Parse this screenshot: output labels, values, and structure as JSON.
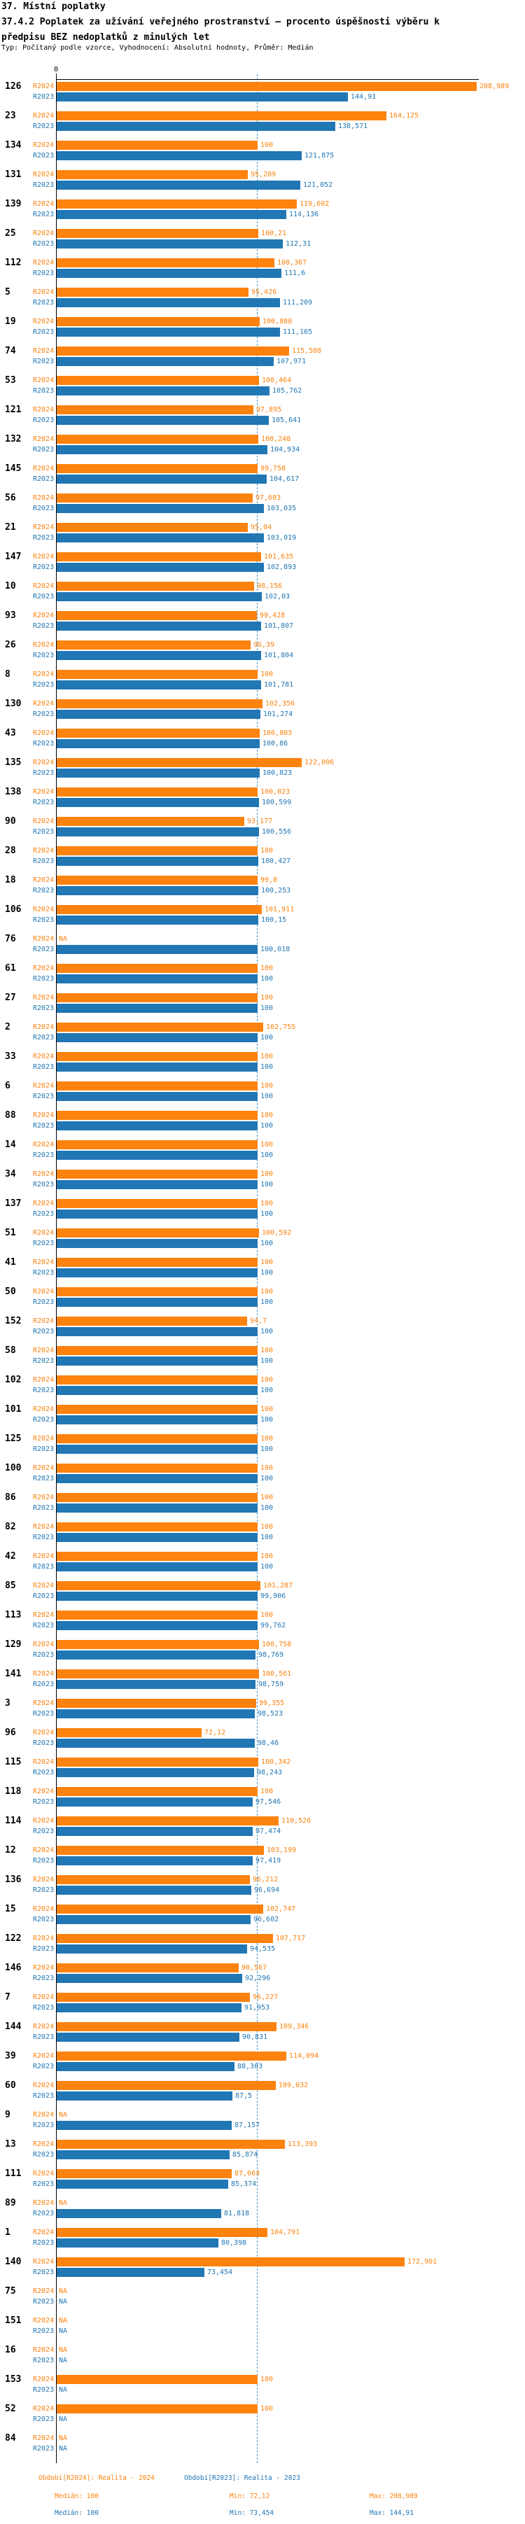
{
  "title": {
    "line1": "37. Místní poplatky",
    "line2": "37.4.2 Poplatek za užívání veřejného prostranství – procento úspěšnosti výběru k",
    "line3": "předpisu BEZ nedoplatků z minulých let",
    "subtitle": "Typ: Počítaný podle vzorce, Vyhodnocení: Absolutní hodnoty, Průměr: Medián"
  },
  "axis": {
    "zero_tick_label": "0"
  },
  "legend": {
    "r2024": {
      "period": "Období[R2024]: Realita - 2024",
      "median": "Medián: 100",
      "min": "Min: 72,12",
      "max": "Max: 208,989"
    },
    "r2023": {
      "period": "Období[R2023]: Realita - 2023",
      "median": "Medián: 100",
      "min": "Min: 73,454",
      "max": "Max: 144,91"
    }
  },
  "chart_data": {
    "type": "bar",
    "orientation": "horizontal",
    "title": "37.4.2 Poplatek za užívání veřejného prostranství – procento úspěšnosti výběru k předpisu BEZ nedoplatků z minulých let",
    "xlabel": "",
    "ylabel": "",
    "xlim": [
      0,
      210
    ],
    "grid": false,
    "refline": {
      "value": 100,
      "style": "dashed",
      "color": "#4a97c9"
    },
    "value_format": "czech decimal comma, NA = no data",
    "series": [
      {
        "key": "r2024",
        "name": "R2024",
        "label": "Období[R2024]: Realita - 2024",
        "color": "#fd820e",
        "median": "100",
        "min": "72,12",
        "max": "208,989"
      },
      {
        "key": "r2023",
        "name": "R2023",
        "label": "Období[R2023]: Realita - 2023",
        "color": "#2176b4",
        "median": "100",
        "min": "73,454",
        "max": "144,91"
      }
    ],
    "groups": [
      {
        "label": "126",
        "r2024": "208,989",
        "r2023": "144,91"
      },
      {
        "label": "23",
        "r2024": "164,125",
        "r2023": "138,571"
      },
      {
        "label": "134",
        "r2024": "100",
        "r2023": "121,875"
      },
      {
        "label": "131",
        "r2024": "95,209",
        "r2023": "121,052"
      },
      {
        "label": "139",
        "r2024": "119,602",
        "r2023": "114,136"
      },
      {
        "label": "25",
        "r2024": "100,21",
        "r2023": "112,31"
      },
      {
        "label": "112",
        "r2024": "108,367",
        "r2023": "111,6"
      },
      {
        "label": "5",
        "r2024": "95,426",
        "r2023": "111,209"
      },
      {
        "label": "19",
        "r2024": "100,888",
        "r2023": "111,165"
      },
      {
        "label": "74",
        "r2024": "115,588",
        "r2023": "107,971"
      },
      {
        "label": "53",
        "r2024": "100,464",
        "r2023": "105,762"
      },
      {
        "label": "121",
        "r2024": "97,895",
        "r2023": "105,641"
      },
      {
        "label": "132",
        "r2024": "100,248",
        "r2023": "104,934"
      },
      {
        "label": "145",
        "r2024": "99,758",
        "r2023": "104,617"
      },
      {
        "label": "56",
        "r2024": "97,603",
        "r2023": "103,035"
      },
      {
        "label": "21",
        "r2024": "95,04",
        "r2023": "103,019"
      },
      {
        "label": "147",
        "r2024": "101,635",
        "r2023": "102,893"
      },
      {
        "label": "10",
        "r2024": "98,156",
        "r2023": "102,03"
      },
      {
        "label": "93",
        "r2024": "99,428",
        "r2023": "101,807"
      },
      {
        "label": "26",
        "r2024": "96,39",
        "r2023": "101,804"
      },
      {
        "label": "8",
        "r2024": "100",
        "r2023": "101,781"
      },
      {
        "label": "130",
        "r2024": "102,356",
        "r2023": "101,274"
      },
      {
        "label": "43",
        "r2024": "100,803",
        "r2023": "100,86"
      },
      {
        "label": "135",
        "r2024": "122,006",
        "r2023": "100,823"
      },
      {
        "label": "138",
        "r2024": "100,023",
        "r2023": "100,599"
      },
      {
        "label": "90",
        "r2024": "93,177",
        "r2023": "100,556"
      },
      {
        "label": "28",
        "r2024": "100",
        "r2023": "100,427"
      },
      {
        "label": "18",
        "r2024": "99,8",
        "r2023": "100,253"
      },
      {
        "label": "106",
        "r2024": "101,911",
        "r2023": "100,15"
      },
      {
        "label": "76",
        "r2024": "NA",
        "r2023": "100,018"
      },
      {
        "label": "61",
        "r2024": "100",
        "r2023": "100"
      },
      {
        "label": "27",
        "r2024": "100",
        "r2023": "100"
      },
      {
        "label": "2",
        "r2024": "102,755",
        "r2023": "100"
      },
      {
        "label": "33",
        "r2024": "100",
        "r2023": "100"
      },
      {
        "label": "6",
        "r2024": "100",
        "r2023": "100"
      },
      {
        "label": "88",
        "r2024": "100",
        "r2023": "100"
      },
      {
        "label": "14",
        "r2024": "100",
        "r2023": "100"
      },
      {
        "label": "34",
        "r2024": "100",
        "r2023": "100"
      },
      {
        "label": "137",
        "r2024": "100",
        "r2023": "100"
      },
      {
        "label": "51",
        "r2024": "100,592",
        "r2023": "100"
      },
      {
        "label": "41",
        "r2024": "100",
        "r2023": "100"
      },
      {
        "label": "50",
        "r2024": "100",
        "r2023": "100"
      },
      {
        "label": "152",
        "r2024": "94,7",
        "r2023": "100"
      },
      {
        "label": "58",
        "r2024": "100",
        "r2023": "100"
      },
      {
        "label": "102",
        "r2024": "100",
        "r2023": "100"
      },
      {
        "label": "101",
        "r2024": "100",
        "r2023": "100"
      },
      {
        "label": "125",
        "r2024": "100",
        "r2023": "100"
      },
      {
        "label": "100",
        "r2024": "100",
        "r2023": "100"
      },
      {
        "label": "86",
        "r2024": "100",
        "r2023": "100"
      },
      {
        "label": "82",
        "r2024": "100",
        "r2023": "100"
      },
      {
        "label": "42",
        "r2024": "100",
        "r2023": "100"
      },
      {
        "label": "85",
        "r2024": "101,287",
        "r2023": "99,906"
      },
      {
        "label": "113",
        "r2024": "100",
        "r2023": "99,762"
      },
      {
        "label": "129",
        "r2024": "100,758",
        "r2023": "98,769"
      },
      {
        "label": "141",
        "r2024": "100,561",
        "r2023": "98,759"
      },
      {
        "label": "3",
        "r2024": "99,355",
        "r2023": "98,523"
      },
      {
        "label": "96",
        "r2024": "72,12",
        "r2023": "98,46"
      },
      {
        "label": "115",
        "r2024": "100,342",
        "r2023": "98,243"
      },
      {
        "label": "118",
        "r2024": "100",
        "r2023": "97,546"
      },
      {
        "label": "114",
        "r2024": "110,526",
        "r2023": "97,474"
      },
      {
        "label": "12",
        "r2024": "103,199",
        "r2023": "97,419"
      },
      {
        "label": "136",
        "r2024": "96,212",
        "r2023": "96,694"
      },
      {
        "label": "15",
        "r2024": "102,747",
        "r2023": "96,602"
      },
      {
        "label": "122",
        "r2024": "107,717",
        "r2023": "94,535"
      },
      {
        "label": "146",
        "r2024": "90,567",
        "r2023": "92,296"
      },
      {
        "label": "7",
        "r2024": "96,227",
        "r2023": "91,953"
      },
      {
        "label": "144",
        "r2024": "109,346",
        "r2023": "90,831"
      },
      {
        "label": "39",
        "r2024": "114,094",
        "r2023": "88,303"
      },
      {
        "label": "60",
        "r2024": "109,032",
        "r2023": "87,5"
      },
      {
        "label": "9",
        "r2024": "NA",
        "r2023": "87,157"
      },
      {
        "label": "13",
        "r2024": "113,393",
        "r2023": "85,874"
      },
      {
        "label": "111",
        "r2024": "87,064",
        "r2023": "85,374"
      },
      {
        "label": "89",
        "r2024": "NA",
        "r2023": "81,818"
      },
      {
        "label": "1",
        "r2024": "104,791",
        "r2023": "80,398"
      },
      {
        "label": "140",
        "r2024": "172,901",
        "r2023": "73,454"
      },
      {
        "label": "75",
        "r2024": "NA",
        "r2023": "NA"
      },
      {
        "label": "151",
        "r2024": "NA",
        "r2023": "NA"
      },
      {
        "label": "16",
        "r2024": "NA",
        "r2023": "NA"
      },
      {
        "label": "153",
        "r2024": "100",
        "r2023": "NA"
      },
      {
        "label": "52",
        "r2024": "100",
        "r2023": "NA"
      },
      {
        "label": "84",
        "r2024": "NA",
        "r2023": "NA"
      }
    ]
  }
}
